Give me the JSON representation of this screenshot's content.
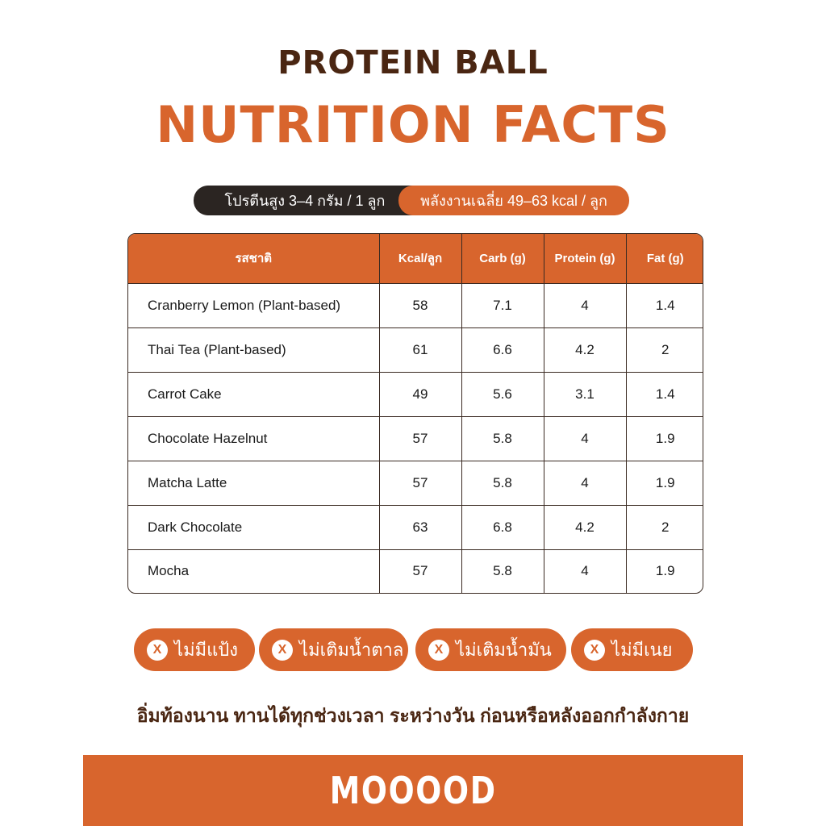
{
  "header": {
    "top_title": "PROTEIN BALL",
    "main_title": "NUTRITION FACTS"
  },
  "info_pills": {
    "protein": "โปรตีนสูง 3–4 กรัม / 1 ลูก",
    "energy": "พลังงานเฉลี่ย 49–63 kcal / ลูก"
  },
  "table": {
    "columns": [
      "รสชาติ",
      "Kcal/ลูก",
      "Carb (g)",
      "Protein (g)",
      "Fat (g)"
    ],
    "rows": [
      {
        "flavor": "Cranberry Lemon (Plant-based)",
        "kcal": "58",
        "carb": "7.1",
        "protein": "4",
        "fat": "1.4"
      },
      {
        "flavor": "Thai Tea (Plant-based)",
        "kcal": "61",
        "carb": "6.6",
        "protein": "4.2",
        "fat": "2"
      },
      {
        "flavor": "Carrot Cake",
        "kcal": "49",
        "carb": "5.6",
        "protein": "3.1",
        "fat": "1.4"
      },
      {
        "flavor": "Chocolate Hazelnut",
        "kcal": "57",
        "carb": "5.8",
        "protein": "4",
        "fat": "1.9"
      },
      {
        "flavor": "Matcha Latte",
        "kcal": "57",
        "carb": "5.8",
        "protein": "4",
        "fat": "1.9"
      },
      {
        "flavor": "Dark Chocolate",
        "kcal": "63",
        "carb": "6.8",
        "protein": "4.2",
        "fat": "2"
      },
      {
        "flavor": "Mocha",
        "kcal": "57",
        "carb": "5.8",
        "protein": "4",
        "fat": "1.9"
      }
    ]
  },
  "badges": [
    {
      "icon": "x-circle-icon",
      "mark": "X",
      "label": "ไม่มีแป้ง"
    },
    {
      "icon": "x-circle-icon",
      "mark": "X",
      "label": "ไม่เติมน้ำตาล"
    },
    {
      "icon": "x-circle-icon",
      "mark": "X",
      "label": "ไม่เติมน้ำมัน"
    },
    {
      "icon": "x-circle-icon",
      "mark": "X",
      "label": "ไม่มีเนย"
    }
  ],
  "slogan": "อิ่มท้องนาน ทานได้ทุกช่วงเวลา ระหว่างวัน ก่อนหรือหลังออกกำลังกาย",
  "footer": {
    "brand": "MOOOOD"
  },
  "colors": {
    "accent": "#d8652d",
    "brown": "#4a2612",
    "dark_pill": "#2b2522"
  }
}
